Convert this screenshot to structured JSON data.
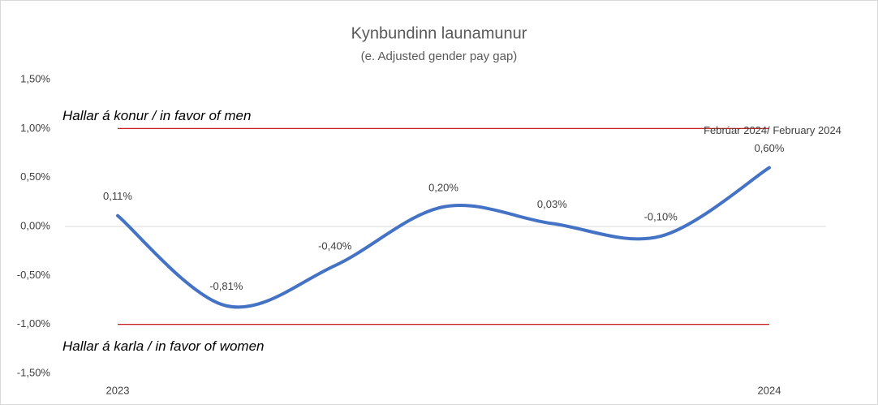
{
  "chart_data": {
    "type": "line",
    "title": "Kynbundinn launamunur",
    "subtitle": "(e. Adjusted gender pay gap)",
    "categories": [
      "2023",
      null,
      null,
      null,
      null,
      null,
      "2024"
    ],
    "series": [
      {
        "name": "Kynbundinn launamunur",
        "color": "#4472c4",
        "values": [
          0.11,
          -0.81,
          -0.4,
          0.2,
          0.03,
          -0.1,
          0.6
        ],
        "value_labels": [
          "0,11%",
          "-0,81%",
          "-0,40%",
          "0,20%",
          "0,03%",
          "-0,10%",
          "0,60%"
        ]
      }
    ],
    "ylim": [
      -1.5,
      1.5
    ],
    "yticks": [
      {
        "value": 1.5,
        "label": "1,50%"
      },
      {
        "value": 1.0,
        "label": "1,00%"
      },
      {
        "value": 0.5,
        "label": "0,50%"
      },
      {
        "value": 0,
        "label": "0,00%"
      },
      {
        "value": -0.5,
        "label": "-0,50%"
      },
      {
        "value": -1.0,
        "label": "-1,00%"
      },
      {
        "value": -1.5,
        "label": "-1,50%"
      }
    ],
    "grid": false,
    "smooth": true,
    "reference_lines": [
      {
        "value": 1.0,
        "label": "Hallar á konur / in favor of men",
        "color": "#c00000"
      },
      {
        "value": -1.0,
        "label": "Hallar á karla / in favor of women",
        "color": "#c00000"
      }
    ],
    "annotations": [
      {
        "text": "Febrúar 2024/ February 2024",
        "point": 6
      }
    ]
  }
}
